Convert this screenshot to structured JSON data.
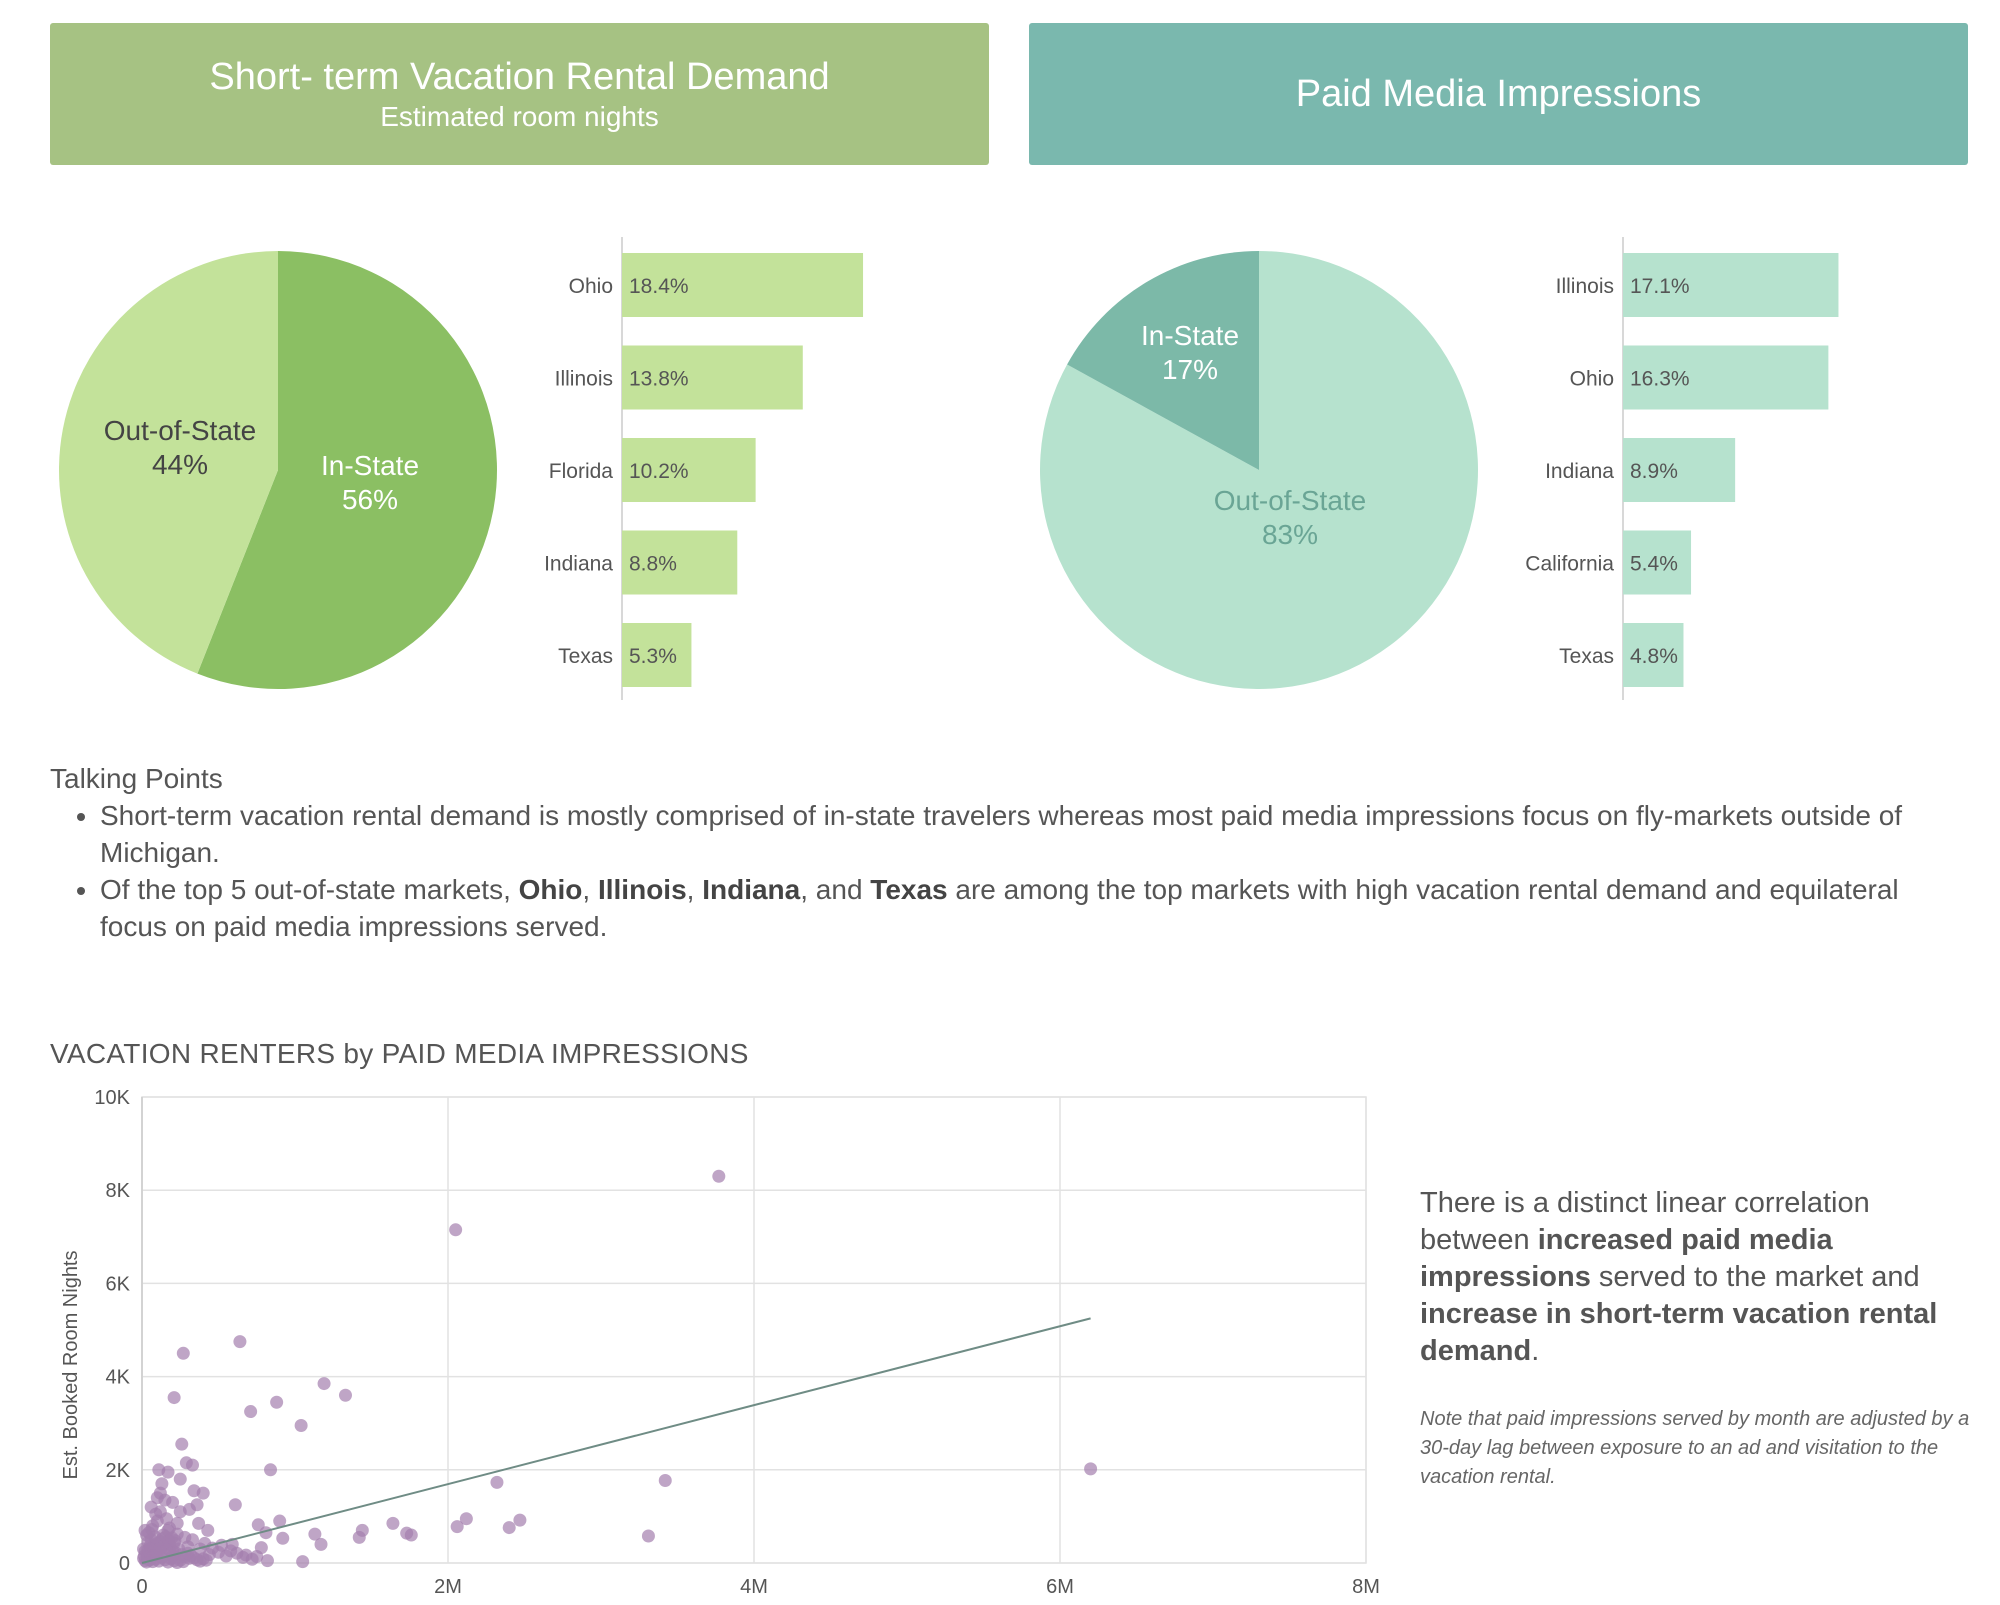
{
  "colors": {
    "banner_left": "#a6c283",
    "banner_right": "#7ab8ae",
    "green_dark": "#8bbf63",
    "green_light": "#c3e29a",
    "teal_dark": "#7cb9a8",
    "teal_light": "#b6e2ce",
    "point": "#a47fae",
    "trend": "#6f8c85"
  },
  "left_banner": {
    "title": "Short- term Vacation Rental Demand",
    "subtitle": "Estimated room nights"
  },
  "right_banner": {
    "title": "Paid Media Impressions"
  },
  "talking_points": {
    "heading": "Talking Points",
    "bullet1": "Short-term vacation rental demand is mostly comprised of in-state travelers whereas most paid media impressions focus on fly-markets outside of Michigan.",
    "bullet2": {
      "t1": "Of the top 5 out-of-state markets, ",
      "b1": "Ohio",
      "t2": ", ",
      "b2": "Illinois",
      "t3": ", ",
      "b3": "Indiana",
      "t4": ", and ",
      "b4": "Texas",
      "t5": " are among the top markets with high vacation rental demand and equilateral focus on paid media impressions served."
    }
  },
  "side_note": {
    "t1": "There is a distinct linear correlation between ",
    "b1": "increased paid media impressions",
    "t2": " served to the market and ",
    "b2": "increase in short-term vacation rental demand",
    "t3": ".",
    "note": "Note that paid impressions served by month are adjusted by a 30-day lag between exposure to an ad and visitation to the vacation rental."
  },
  "chart_data": [
    {
      "type": "pie",
      "slices": [
        {
          "label": "In-State",
          "pct_label": "56%",
          "value": 56
        },
        {
          "label": "Out-of-State",
          "pct_label": "44%",
          "value": 44
        }
      ]
    },
    {
      "type": "bar",
      "orientation": "horizontal",
      "categories": [
        "Ohio",
        "Illinois",
        "Florida",
        "Indiana",
        "Texas"
      ],
      "values": [
        18.4,
        13.8,
        10.2,
        8.8,
        5.3
      ],
      "value_labels": [
        "18.4%",
        "13.8%",
        "10.2%",
        "8.8%",
        "5.3%"
      ]
    },
    {
      "type": "pie",
      "slices": [
        {
          "label": "Out-of-State",
          "pct_label": "83%",
          "value": 83
        },
        {
          "label": "In-State",
          "pct_label": "17%",
          "value": 17
        }
      ]
    },
    {
      "type": "bar",
      "orientation": "horizontal",
      "categories": [
        "Illinois",
        "Ohio",
        "Indiana",
        "California",
        "Texas"
      ],
      "values": [
        17.1,
        16.3,
        8.9,
        5.4,
        4.8
      ],
      "value_labels": [
        "17.1%",
        "16.3%",
        "8.9%",
        "5.4%",
        "4.8%"
      ]
    },
    {
      "type": "scatter",
      "title": "VACATION RENTERS by PAID MEDIA IMPRESSIONS",
      "xlabel": "",
      "ylabel": "Est. Booked Room Nights",
      "xlim": [
        0,
        8000000
      ],
      "ylim": [
        0,
        10000
      ],
      "xticks": [
        0,
        2000000,
        4000000,
        6000000,
        8000000
      ],
      "xtick_labels": [
        "0",
        "2M",
        "4M",
        "6M",
        "8M"
      ],
      "yticks": [
        0,
        2000,
        4000,
        6000,
        8000,
        10000
      ],
      "ytick_labels": [
        "0",
        "2K",
        "4K",
        "6K",
        "8K",
        "10K"
      ],
      "grid": true,
      "trendline": {
        "x": [
          0,
          6200000
        ],
        "y": [
          0,
          5250
        ]
      },
      "points": [
        [
          3770000,
          8300
        ],
        [
          2050000,
          7150
        ],
        [
          6200000,
          2020
        ],
        [
          640000,
          4750
        ],
        [
          270000,
          4500
        ],
        [
          1190000,
          3850
        ],
        [
          1330000,
          3600
        ],
        [
          210000,
          3550
        ],
        [
          880000,
          3450
        ],
        [
          710000,
          3250
        ],
        [
          1040000,
          2950
        ],
        [
          260000,
          2550
        ],
        [
          840000,
          2000
        ],
        [
          290000,
          2150
        ],
        [
          330000,
          2100
        ],
        [
          110000,
          2000
        ],
        [
          170000,
          1950
        ],
        [
          3420000,
          1770
        ],
        [
          2320000,
          1730
        ],
        [
          340000,
          1550
        ],
        [
          120000,
          1500
        ],
        [
          400000,
          1500
        ],
        [
          100000,
          1400
        ],
        [
          150000,
          1350
        ],
        [
          200000,
          1300
        ],
        [
          610000,
          1250
        ],
        [
          360000,
          1250
        ],
        [
          310000,
          1150
        ],
        [
          120000,
          1100
        ],
        [
          250000,
          1100
        ],
        [
          90000,
          1050
        ],
        [
          2120000,
          950
        ],
        [
          2470000,
          920
        ],
        [
          900000,
          900
        ],
        [
          1640000,
          850
        ],
        [
          370000,
          850
        ],
        [
          230000,
          850
        ],
        [
          760000,
          820
        ],
        [
          2060000,
          780
        ],
        [
          2400000,
          760
        ],
        [
          1440000,
          700
        ],
        [
          170000,
          700
        ],
        [
          430000,
          700
        ],
        [
          810000,
          650
        ],
        [
          1730000,
          640
        ],
        [
          1760000,
          600
        ],
        [
          1130000,
          620
        ],
        [
          3310000,
          580
        ],
        [
          1420000,
          550
        ],
        [
          920000,
          530
        ],
        [
          140000,
          600
        ],
        [
          280000,
          550
        ],
        [
          330000,
          500
        ],
        [
          60000,
          500
        ],
        [
          1170000,
          400
        ],
        [
          590000,
          400
        ],
        [
          210000,
          430
        ],
        [
          50000,
          350
        ],
        [
          780000,
          330
        ],
        [
          380000,
          300
        ],
        [
          180000,
          280
        ],
        [
          120000,
          250
        ],
        [
          500000,
          230
        ],
        [
          1050000,
          30
        ],
        [
          820000,
          50
        ],
        [
          310000,
          100
        ],
        [
          40000,
          200
        ],
        [
          90000,
          180
        ],
        [
          200000,
          150
        ],
        [
          440000,
          180
        ],
        [
          550000,
          150
        ],
        [
          660000,
          120
        ],
        [
          720000,
          80
        ],
        [
          30000,
          600
        ],
        [
          70000,
          800
        ],
        [
          20000,
          700
        ],
        [
          100000,
          900
        ],
        [
          160000,
          950
        ],
        [
          60000,
          1200
        ],
        [
          130000,
          1700
        ],
        [
          250000,
          1800
        ],
        [
          180000,
          750
        ],
        [
          40000,
          450
        ],
        [
          230000,
          620
        ],
        [
          300000,
          350
        ],
        [
          410000,
          420
        ],
        [
          460000,
          320
        ],
        [
          520000,
          380
        ],
        [
          580000,
          260
        ],
        [
          620000,
          210
        ],
        [
          680000,
          170
        ],
        [
          750000,
          140
        ],
        [
          10000,
          100
        ],
        [
          20000,
          50
        ],
        [
          30000,
          20
        ],
        [
          50000,
          60
        ],
        [
          70000,
          30
        ],
        [
          90000,
          80
        ],
        [
          110000,
          40
        ],
        [
          130000,
          120
        ],
        [
          150000,
          70
        ],
        [
          170000,
          20
        ],
        [
          190000,
          90
        ],
        [
          210000,
          50
        ],
        [
          230000,
          10
        ],
        [
          250000,
          60
        ],
        [
          270000,
          30
        ],
        [
          10000,
          300
        ],
        [
          20000,
          250
        ],
        [
          40000,
          280
        ],
        [
          60000,
          320
        ],
        [
          80000,
          380
        ],
        [
          100000,
          420
        ],
        [
          120000,
          460
        ],
        [
          140000,
          380
        ],
        [
          160000,
          330
        ],
        [
          180000,
          400
        ],
        [
          200000,
          260
        ],
        [
          220000,
          220
        ],
        [
          240000,
          300
        ],
        [
          260000,
          180
        ],
        [
          280000,
          140
        ],
        [
          300000,
          210
        ],
        [
          320000,
          160
        ],
        [
          340000,
          110
        ],
        [
          360000,
          70
        ],
        [
          380000,
          40
        ],
        [
          400000,
          90
        ],
        [
          420000,
          60
        ],
        [
          15000,
          150
        ],
        [
          35000,
          120
        ],
        [
          55000,
          90
        ],
        [
          75000,
          160
        ],
        [
          95000,
          230
        ],
        [
          115000,
          300
        ],
        [
          135000,
          520
        ],
        [
          155000,
          560
        ],
        [
          175000,
          480
        ],
        [
          195000,
          540
        ],
        [
          215000,
          480
        ],
        [
          45000,
          650
        ],
        [
          85000,
          560
        ],
        [
          65000,
          720
        ]
      ]
    }
  ]
}
